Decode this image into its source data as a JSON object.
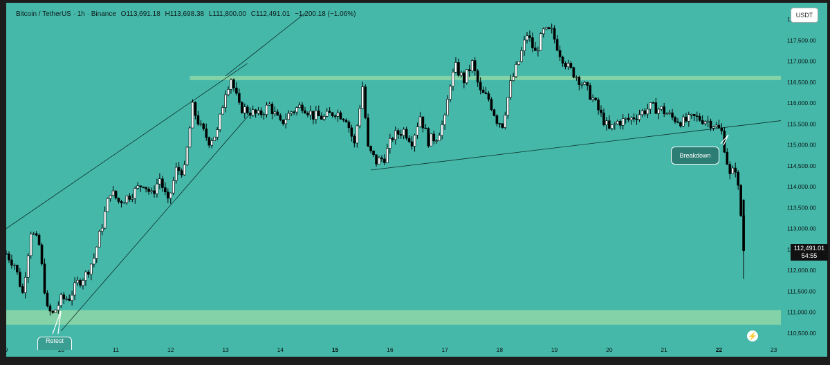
{
  "header": {
    "symbol": "Bitcoin / TetherUS · 1h · Binance",
    "open": "O113,691.18",
    "high": "H113,698.38",
    "low": "L111,800.00",
    "close": "C112,491.01",
    "change": "−1,200.18 (−1.06%)"
  },
  "unit_label": "USDT",
  "price_tag": {
    "price": "112,491.01",
    "countdown": "54:55"
  },
  "annotations": {
    "breakdown": "Breakdown",
    "bottom_label": "Retest"
  },
  "colors": {
    "background": "#45b8aa",
    "zone": "#8fd6a8",
    "candle_up": "#ffffff",
    "candle_down": "#000000",
    "wick": "#000000",
    "frame": "#1c1c1c"
  },
  "chart_data": {
    "type": "candlestick",
    "symbol": "BTC/USDT",
    "interval": "1h",
    "exchange": "Binance",
    "y_ticks": [
      "118,000.00",
      "117,500.00",
      "117,000.00",
      "116,500.00",
      "116,000.00",
      "115,500.00",
      "115,000.00",
      "114,500.00",
      "114,000.00",
      "113,500.00",
      "113,000.00",
      "112,500.00",
      "112,000.00",
      "111,500.00",
      "111,000.00",
      "110,500.00"
    ],
    "y_tick_values": [
      118000,
      117500,
      117000,
      116500,
      116000,
      115500,
      115000,
      114500,
      114000,
      113500,
      113000,
      112500,
      112000,
      111500,
      111000,
      110500
    ],
    "x_ticks": [
      {
        "label": "9",
        "day": 9.0
      },
      {
        "label": "10",
        "day": 10.0
      },
      {
        "label": "11",
        "day": 11.0
      },
      {
        "label": "12",
        "day": 12.0
      },
      {
        "label": "13",
        "day": 13.0
      },
      {
        "label": "14",
        "day": 14.0
      },
      {
        "label": "15",
        "day": 15.0,
        "bold": true
      },
      {
        "label": "16",
        "day": 16.0
      },
      {
        "label": "17",
        "day": 17.0
      },
      {
        "label": "18",
        "day": 18.0
      },
      {
        "label": "19",
        "day": 19.0
      },
      {
        "label": "20",
        "day": 20.0
      },
      {
        "label": "21",
        "day": 21.0
      },
      {
        "label": "22",
        "day": 22.0,
        "bold": true
      },
      {
        "label": "23",
        "day": 23.0
      }
    ],
    "ylim": [
      110250,
      118400
    ],
    "xlim": [
      9.0,
      23.13
    ],
    "last_price": 112491.01,
    "zones": [
      {
        "from": 116550,
        "to": 116650
      },
      {
        "from": 110700,
        "to": 111050
      }
    ],
    "trendlines": [
      {
        "from": [
          9.0,
          113000
        ],
        "to": [
          13.4,
          116950
        ]
      },
      {
        "from": [
          10.0,
          110550
        ],
        "to": [
          13.45,
          115750
        ]
      },
      {
        "from": [
          13.0,
          116650
        ],
        "to": [
          14.45,
          118150
        ]
      },
      {
        "from": [
          15.65,
          114400
        ],
        "to": [
          23.13,
          115580
        ]
      }
    ],
    "path_points": [
      [
        9.0,
        112400
      ],
      [
        9.15,
        112150
      ],
      [
        9.3,
        111450
      ],
      [
        9.45,
        112950
      ],
      [
        9.6,
        112600
      ],
      [
        9.75,
        111050
      ],
      [
        9.85,
        110950
      ],
      [
        10.0,
        111300
      ],
      [
        10.15,
        111350
      ],
      [
        10.3,
        111700
      ],
      [
        10.45,
        111900
      ],
      [
        10.6,
        112300
      ],
      [
        10.75,
        113100
      ],
      [
        10.9,
        113900
      ],
      [
        11.05,
        113650
      ],
      [
        11.2,
        113750
      ],
      [
        11.35,
        113900
      ],
      [
        11.5,
        114100
      ],
      [
        11.65,
        113800
      ],
      [
        11.8,
        114200
      ],
      [
        11.95,
        113600
      ],
      [
        12.1,
        114400
      ],
      [
        12.25,
        114400
      ],
      [
        12.4,
        115900
      ],
      [
        12.55,
        115400
      ],
      [
        12.7,
        115100
      ],
      [
        12.85,
        115300
      ],
      [
        13.0,
        116300
      ],
      [
        13.1,
        116600
      ],
      [
        13.25,
        115900
      ],
      [
        13.45,
        115800
      ],
      [
        13.6,
        115700
      ],
      [
        13.8,
        115950
      ],
      [
        14.0,
        115500
      ],
      [
        14.2,
        115800
      ],
      [
        14.4,
        115950
      ],
      [
        14.6,
        115700
      ],
      [
        14.8,
        115650
      ],
      [
        15.0,
        115800
      ],
      [
        15.2,
        115650
      ],
      [
        15.35,
        115000
      ],
      [
        15.5,
        116400
      ],
      [
        15.6,
        114900
      ],
      [
        15.75,
        114600
      ],
      [
        15.9,
        114700
      ],
      [
        16.05,
        115200
      ],
      [
        16.25,
        115350
      ],
      [
        16.4,
        115100
      ],
      [
        16.55,
        115700
      ],
      [
        16.7,
        115100
      ],
      [
        16.85,
        115200
      ],
      [
        17.0,
        115600
      ],
      [
        17.1,
        116500
      ],
      [
        17.2,
        116850
      ],
      [
        17.35,
        116550
      ],
      [
        17.5,
        116950
      ],
      [
        17.65,
        116250
      ],
      [
        17.8,
        116100
      ],
      [
        17.95,
        115600
      ],
      [
        18.05,
        115500
      ],
      [
        18.2,
        116450
      ],
      [
        18.35,
        117000
      ],
      [
        18.5,
        117650
      ],
      [
        18.65,
        117200
      ],
      [
        18.8,
        117700
      ],
      [
        18.95,
        117700
      ],
      [
        19.1,
        117200
      ],
      [
        19.25,
        116850
      ],
      [
        19.4,
        116650
      ],
      [
        19.55,
        116400
      ],
      [
        19.7,
        116100
      ],
      [
        19.85,
        115700
      ],
      [
        20.0,
        115350
      ],
      [
        20.15,
        115550
      ],
      [
        20.35,
        115600
      ],
      [
        20.55,
        115750
      ],
      [
        20.75,
        115900
      ],
      [
        20.95,
        115850
      ],
      [
        21.15,
        115650
      ],
      [
        21.35,
        115550
      ],
      [
        21.55,
        115650
      ],
      [
        21.75,
        115600
      ],
      [
        21.9,
        115500
      ],
      [
        22.05,
        115300
      ],
      [
        22.2,
        114250
      ],
      [
        22.3,
        114450
      ],
      [
        22.38,
        113650
      ],
      [
        22.45,
        112491
      ]
    ]
  }
}
